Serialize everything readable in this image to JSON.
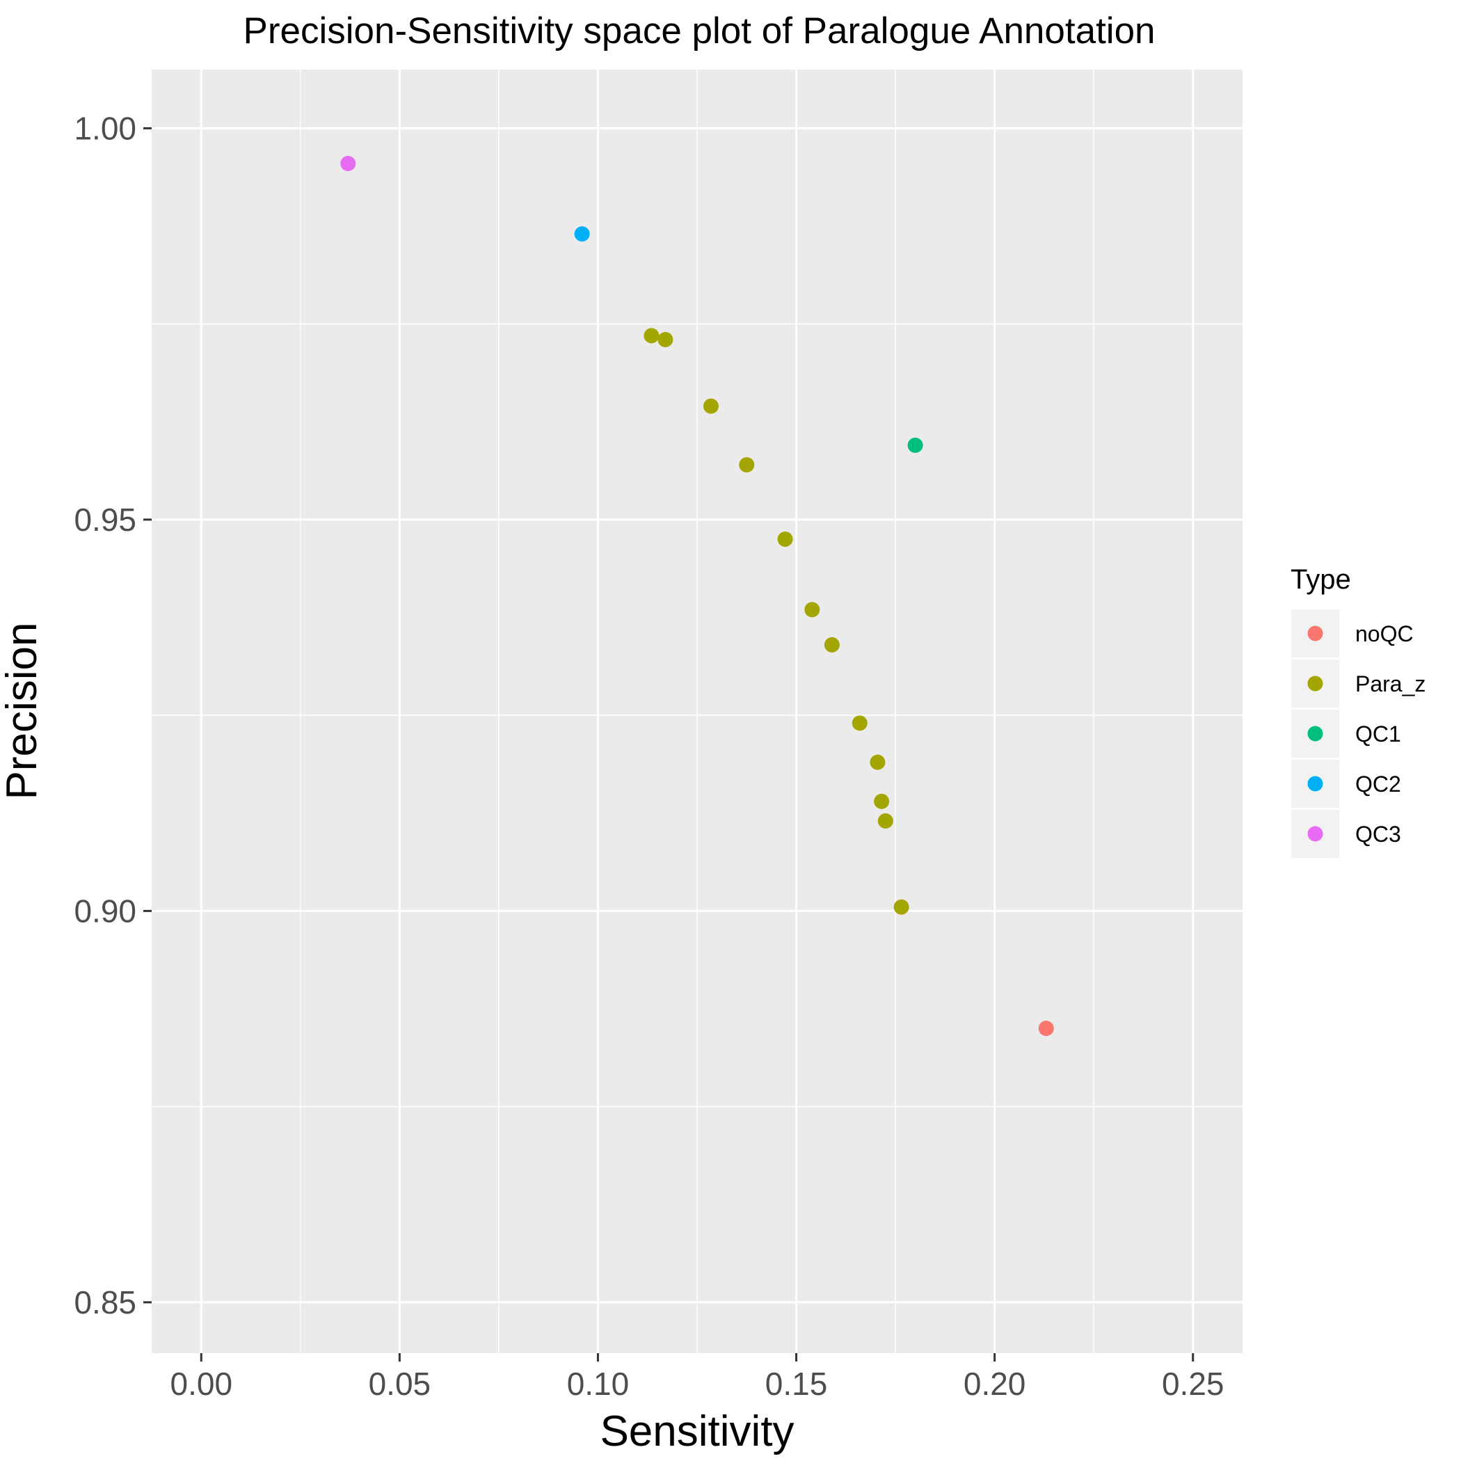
{
  "chart_data": {
    "type": "scatter",
    "title": "Precision-Sensitivity space plot of Paralogue Annotation",
    "xlabel": "Sensitivity",
    "ylabel": "Precision",
    "xlim": [
      -0.0125,
      0.2625
    ],
    "ylim": [
      0.8435,
      1.0075
    ],
    "x_ticks": [
      0.0,
      0.05,
      0.1,
      0.15,
      0.2,
      0.25
    ],
    "x_tick_labels": [
      "0.00",
      "0.05",
      "0.10",
      "0.15",
      "0.20",
      "0.25"
    ],
    "y_ticks": [
      0.85,
      0.9,
      0.95,
      1.0
    ],
    "y_tick_labels": [
      "0.85",
      "0.90",
      "0.95",
      "1.00"
    ],
    "grid": true,
    "legend": {
      "title": "Type",
      "placement": "right"
    },
    "series": [
      {
        "name": "noQC",
        "color": "#F8766D",
        "points": [
          {
            "x": 0.213,
            "y": 0.885
          }
        ]
      },
      {
        "name": "Para_z",
        "color": "#A3A500",
        "points": [
          {
            "x": 0.1135,
            "y": 0.9735
          },
          {
            "x": 0.117,
            "y": 0.973
          },
          {
            "x": 0.1285,
            "y": 0.9645
          },
          {
            "x": 0.1375,
            "y": 0.957
          },
          {
            "x": 0.1472,
            "y": 0.9475
          },
          {
            "x": 0.154,
            "y": 0.9385
          },
          {
            "x": 0.159,
            "y": 0.934
          },
          {
            "x": 0.166,
            "y": 0.924
          },
          {
            "x": 0.1705,
            "y": 0.919
          },
          {
            "x": 0.1715,
            "y": 0.914
          },
          {
            "x": 0.1725,
            "y": 0.9115
          },
          {
            "x": 0.1765,
            "y": 0.9005
          }
        ]
      },
      {
        "name": "QC1",
        "color": "#00BF7D",
        "points": [
          {
            "x": 0.18,
            "y": 0.9595
          }
        ]
      },
      {
        "name": "QC2",
        "color": "#00B0F6",
        "points": [
          {
            "x": 0.096,
            "y": 0.9865
          }
        ]
      },
      {
        "name": "QC3",
        "color": "#E76BF3",
        "points": [
          {
            "x": 0.037,
            "y": 0.9955
          }
        ]
      }
    ]
  }
}
